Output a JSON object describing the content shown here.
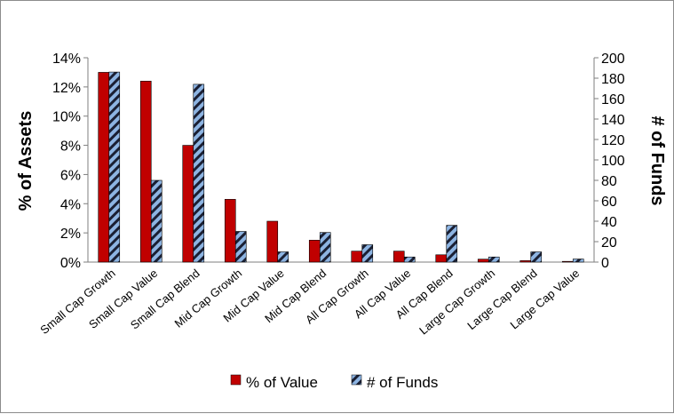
{
  "chart_data": {
    "type": "bar",
    "categories": [
      "Small Cap Growth",
      "Small Cap Value",
      "Small Cap Blend",
      "Mid Cap Growth",
      "Mid Cap Value",
      "Mid Cap Blend",
      "All Cap Growth",
      "All Cap Value",
      "All Cap Blend",
      "Large Cap Growth",
      "Large Cap Blend",
      "Large Cap Value"
    ],
    "series": [
      {
        "name": "% of Value",
        "axis": "left",
        "color": "#c00000",
        "values": [
          13.0,
          12.4,
          8.0,
          4.3,
          2.8,
          1.5,
          0.75,
          0.75,
          0.5,
          0.2,
          0.1,
          0.05
        ]
      },
      {
        "name": "# of Funds",
        "axis": "right",
        "color": "#8db4e2",
        "stripe_color": "#1a1f33",
        "values": [
          186,
          80,
          174,
          30,
          10,
          29,
          17,
          5,
          36,
          5,
          10,
          3
        ]
      }
    ],
    "ylabel": "% of Assets",
    "ylabel_right": "# of Funds",
    "ylim": [
      0,
      14
    ],
    "ylim_right": [
      0,
      200
    ],
    "yticks": [
      "0%",
      "2%",
      "4%",
      "6%",
      "8%",
      "10%",
      "12%",
      "14%"
    ],
    "yticks_right": [
      "0",
      "20",
      "40",
      "60",
      "80",
      "100",
      "120",
      "140",
      "160",
      "180",
      "200"
    ],
    "grid": false,
    "legend": "bottom"
  }
}
